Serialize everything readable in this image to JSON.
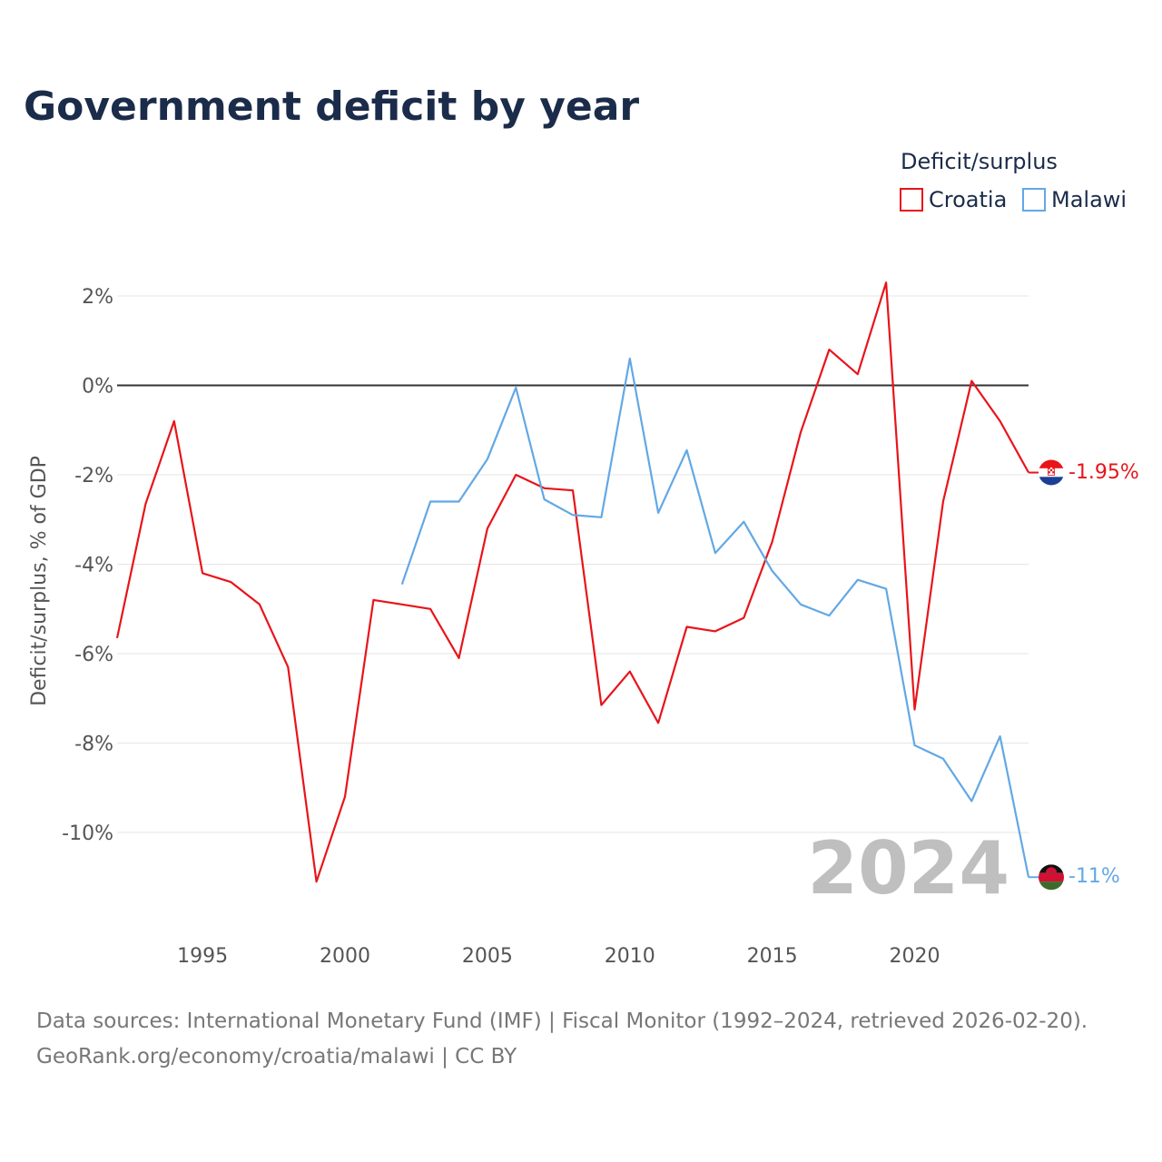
{
  "title": "Government deficit by year",
  "legend": {
    "title": "Deficit/surplus",
    "items": [
      {
        "name": "Croatia",
        "color": "#e8141a"
      },
      {
        "name": "Malawi",
        "color": "#62a8e5"
      }
    ]
  },
  "year_watermark": "2024",
  "end_labels": {
    "croatia": "-1.95%",
    "malawi": "-11%"
  },
  "source": {
    "line1": "Data sources: International Monetary Fund (IMF) | Fiscal Monitor (1992–2024, retrieved 2026-02-20).",
    "line2": "GeoRank.org/economy/croatia/malawi | CC BY"
  },
  "chart_data": {
    "type": "line",
    "title": "Government deficit by year",
    "xlabel": "",
    "ylabel": "Deficit/surplus, % of GDP",
    "xlim": [
      1992,
      2024
    ],
    "ylim": [
      -12,
      2.5
    ],
    "x_ticks": [
      1995,
      2000,
      2005,
      2010,
      2015,
      2020
    ],
    "y_ticks": [
      2,
      0,
      -2,
      -4,
      -6,
      -8,
      -10
    ],
    "y_tick_labels": [
      "2%",
      "0%",
      "-2%",
      "-4%",
      "-6%",
      "-8%",
      "-10%"
    ],
    "zero_line": true,
    "series": [
      {
        "name": "Croatia",
        "color": "#e8141a",
        "x": [
          1992,
          1993,
          1994,
          1995,
          1996,
          1997,
          1998,
          1999,
          2000,
          2001,
          2002,
          2003,
          2004,
          2005,
          2006,
          2007,
          2008,
          2009,
          2010,
          2011,
          2012,
          2013,
          2014,
          2015,
          2016,
          2017,
          2018,
          2019,
          2020,
          2021,
          2022,
          2023,
          2024
        ],
        "values": [
          -5.65,
          -2.65,
          -0.8,
          -4.2,
          -4.4,
          -4.9,
          -6.3,
          -11.1,
          -9.2,
          -4.8,
          -4.9,
          -5.0,
          -6.1,
          -3.2,
          -2.0,
          -2.3,
          -2.35,
          -7.15,
          -6.4,
          -7.55,
          -5.4,
          -5.5,
          -5.2,
          -3.5,
          -1.05,
          0.8,
          0.25,
          2.3,
          -7.25,
          -2.6,
          0.1,
          -0.8,
          -1.95
        ]
      },
      {
        "name": "Malawi",
        "color": "#62a8e5",
        "x": [
          2002,
          2003,
          2004,
          2005,
          2006,
          2007,
          2008,
          2009,
          2010,
          2011,
          2012,
          2013,
          2014,
          2015,
          2016,
          2017,
          2018,
          2019,
          2020,
          2021,
          2022,
          2023,
          2024
        ],
        "values": [
          -4.45,
          -2.6,
          -2.6,
          -1.65,
          -0.05,
          -2.55,
          -2.9,
          -2.95,
          0.6,
          -2.85,
          -1.45,
          -3.75,
          -3.05,
          -4.15,
          -4.9,
          -5.15,
          -4.35,
          -4.55,
          -8.05,
          -8.35,
          -9.3,
          -7.85,
          -11.0
        ]
      }
    ],
    "legend_position": "top-right"
  }
}
